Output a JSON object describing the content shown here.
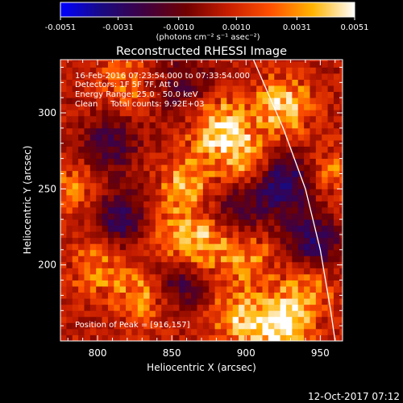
{
  "colorbar": {
    "tick_labels": [
      "-0.0051",
      "-0.0031",
      "-0.0010",
      "0.0010",
      "0.0031",
      "0.0051"
    ],
    "tick_values": [
      -0.0051,
      -0.0031,
      -0.001,
      0.001,
      0.0031,
      0.0051
    ],
    "range": [
      -0.0051,
      0.0051
    ],
    "colormap": [
      "#0000ff",
      "#1a0a80",
      "#400040",
      "#700000",
      "#c81e00",
      "#ff5000",
      "#ffb400",
      "#ffffff"
    ]
  },
  "info": {
    "line1": "16-Feb-2016 07:23:54.000 to 07:33:54.000",
    "line2": "Detectors: 1F 5F 7F, Att 0",
    "line3": "Energy Range: 25.0 - 50.0 keV",
    "line4": "Clean     Total counts: 9.92E+03",
    "peak": "Position of Peak = [916,157]"
  },
  "footer": {
    "timestamp": "12-Oct-2017 07:12"
  },
  "chart_data": {
    "type": "heatmap",
    "title": "Reconstructed RHESSI Image",
    "xlabel": "Heliocentric X (arcsec)",
    "ylabel": "Heliocentric Y (arcsec)",
    "colorbar_units": "(photons cm⁻² s⁻¹ asec⁻²)",
    "xlim": [
      775,
      965
    ],
    "ylim": [
      150,
      335
    ],
    "xticks": [
      800,
      850,
      900,
      950
    ],
    "yticks": [
      200,
      250,
      300
    ],
    "peak": {
      "x": 916,
      "y": 157
    },
    "solar_limb": [
      [
        905,
        335
      ],
      [
        925,
        290
      ],
      [
        940,
        250
      ],
      [
        950,
        210
      ],
      [
        957,
        170
      ],
      [
        960,
        150
      ]
    ],
    "sources": [
      {
        "x": 925,
        "y": 305,
        "amp": 0.004
      },
      {
        "x": 882,
        "y": 290,
        "amp": 0.0042
      },
      {
        "x": 860,
        "y": 255,
        "amp": 0.003
      },
      {
        "x": 900,
        "y": 270,
        "amp": 0.003
      },
      {
        "x": 870,
        "y": 213,
        "amp": 0.0032
      },
      {
        "x": 850,
        "y": 220,
        "amp": 0.0024
      },
      {
        "x": 900,
        "y": 205,
        "amp": 0.0026
      },
      {
        "x": 830,
        "y": 180,
        "amp": 0.0028
      },
      {
        "x": 800,
        "y": 200,
        "amp": 0.0024
      },
      {
        "x": 785,
        "y": 250,
        "amp": 0.002
      },
      {
        "x": 925,
        "y": 160,
        "amp": 0.0048
      },
      {
        "x": 895,
        "y": 165,
        "amp": 0.0034
      },
      {
        "x": 940,
        "y": 185,
        "amp": 0.0024
      },
      {
        "x": 960,
        "y": 260,
        "amp": 0.002
      },
      {
        "x": 820,
        "y": 320,
        "amp": 0.002
      }
    ],
    "sinks": [
      {
        "x": 925,
        "y": 255,
        "amp": -0.0038
      },
      {
        "x": 945,
        "y": 215,
        "amp": -0.0032
      },
      {
        "x": 815,
        "y": 230,
        "amp": -0.003
      },
      {
        "x": 855,
        "y": 190,
        "amp": -0.0028
      },
      {
        "x": 808,
        "y": 280,
        "amp": -0.0024
      },
      {
        "x": 895,
        "y": 237,
        "amp": -0.0022
      },
      {
        "x": 858,
        "y": 318,
        "amp": -0.002
      }
    ]
  }
}
